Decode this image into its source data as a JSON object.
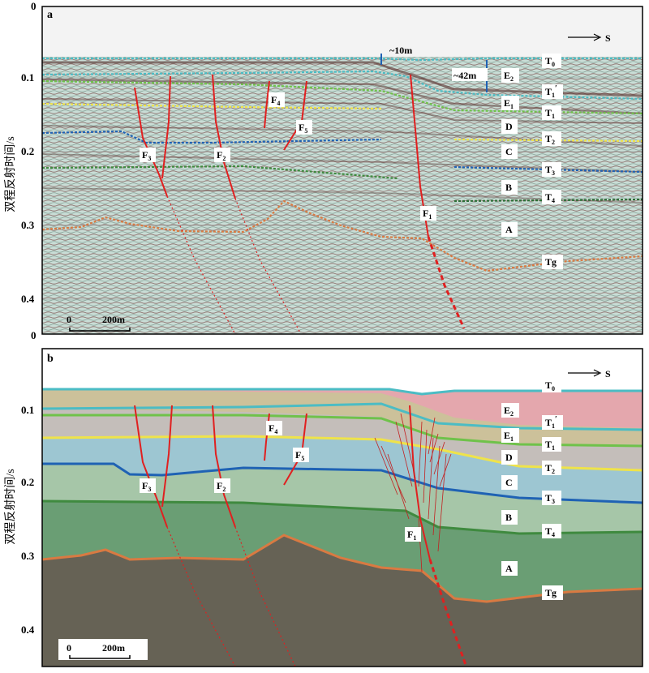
{
  "panels": {
    "a": {
      "letter": "a",
      "top_tick": "0",
      "bottom_tick": "0"
    },
    "b": {
      "letter": "b"
    }
  },
  "axis": {
    "ylabel": "双程反射时间/s",
    "ticks_a": [
      "0.1",
      "0.2",
      "0.3",
      "0.4"
    ],
    "ticks_b": [
      "0.1",
      "0.2",
      "0.3",
      "0.4"
    ]
  },
  "direction": "S",
  "scale_bar": {
    "zero": "0",
    "length": "200m"
  },
  "annotations": {
    "thickness_small": "~10m",
    "thickness_large": "~42m"
  },
  "horizons": {
    "T0": {
      "main": "T",
      "sub": "0"
    },
    "T1p": {
      "main": "T",
      "sub": "1",
      "sup": "′"
    },
    "T1": {
      "main": "T",
      "sub": "1"
    },
    "T2": {
      "main": "T",
      "sub": "2"
    },
    "T3": {
      "main": "T",
      "sub": "3"
    },
    "T4": {
      "main": "T",
      "sub": "4"
    },
    "Tg": {
      "main": "Tg"
    }
  },
  "units": {
    "E2": {
      "main": "E",
      "sub": "2"
    },
    "E1": {
      "main": "E",
      "sub": "1"
    },
    "D": {
      "main": "D"
    },
    "C": {
      "main": "C"
    },
    "B": {
      "main": "B"
    },
    "A": {
      "main": "A"
    }
  },
  "faults": {
    "F1": {
      "main": "F",
      "sub": "1"
    },
    "F2": {
      "main": "F",
      "sub": "2"
    },
    "F3": {
      "main": "F",
      "sub": "3"
    },
    "F4": {
      "main": "F",
      "sub": "4"
    },
    "F5": {
      "main": "F",
      "sub": "5"
    }
  },
  "colors": {
    "water": "#dcdcdc",
    "unit_E2": "#e4a7ad",
    "unit_E1": "#ccc19a",
    "unit_D": "#c4beba",
    "unit_C": "#9dc6d2",
    "unit_B": "#a6c6a8",
    "unit_A": "#6a9e74",
    "basement": "#666255",
    "T0": "#4bbcc4",
    "T1p": "#6fc24a",
    "T1": "#efe34a",
    "T2": "#1f62b4",
    "T3": "#3f8a3f",
    "T4": "#2c6e36",
    "Tg": "#d97a42",
    "fault": "#e02020"
  }
}
